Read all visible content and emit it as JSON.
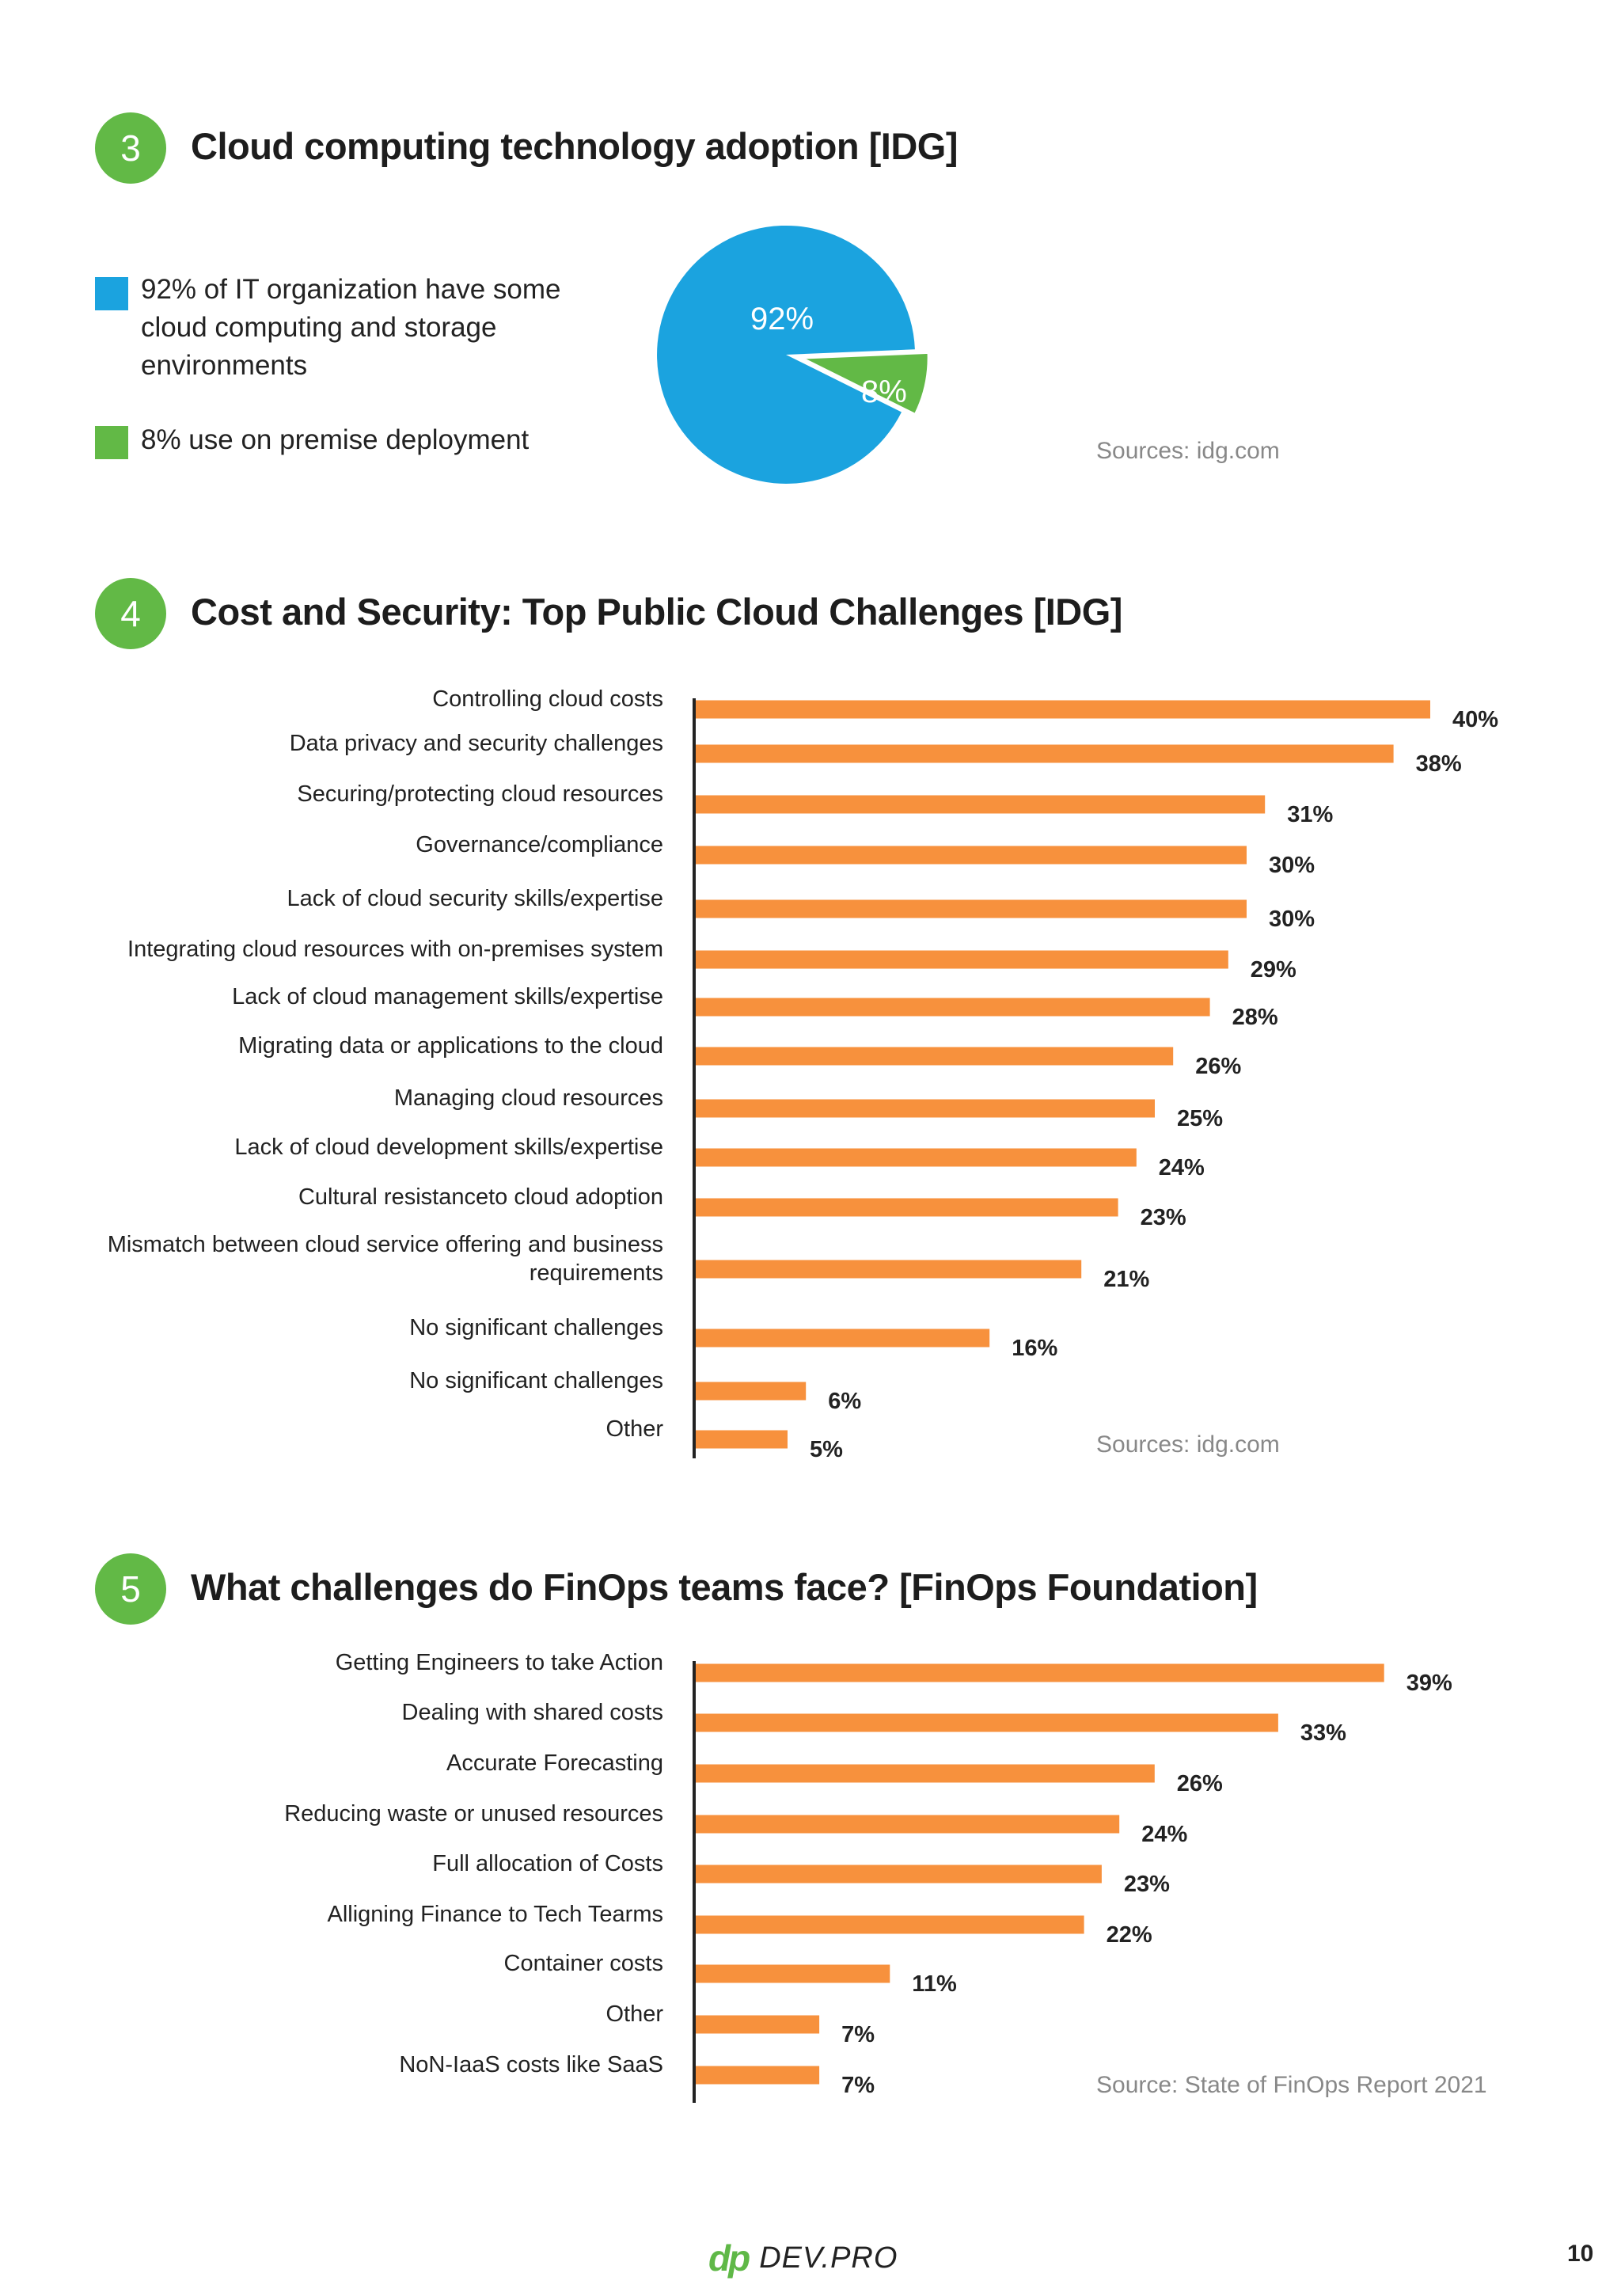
{
  "colors": {
    "green": "#62b946",
    "blue": "#1ba3df",
    "orange": "#f7913d",
    "axis": "#222222"
  },
  "sections": [
    {
      "number": "3",
      "title": "Cloud computing technology adoption [IDG]"
    },
    {
      "number": "4",
      "title": "Cost and Security: Top Public Cloud Challenges [IDG]"
    },
    {
      "number": "5",
      "title": "What challenges do FinOps teams face? [FinOps Foundation]"
    }
  ],
  "legend": [
    {
      "text": "92% of IT organization have some cloud computing and storage environments",
      "color": "#1ba3df"
    },
    {
      "text": "8% use on premise deployment",
      "color": "#62b946"
    }
  ],
  "sources": {
    "s3": "Sources: idg.com",
    "s4": "Sources: idg.com",
    "s5": "Source: State of FinOps Report 2021"
  },
  "chart_data": [
    {
      "type": "pie",
      "title": "Cloud computing technology adoption [IDG]",
      "slices": [
        {
          "label": "92%",
          "value": 92,
          "color": "#1ba3df"
        },
        {
          "label": "8%",
          "value": 8,
          "color": "#62b946"
        }
      ]
    },
    {
      "type": "bar",
      "orientation": "horizontal",
      "title": "Cost and Security: Top Public Cloud Challenges [IDG]",
      "categories": [
        "Controlling cloud  costs",
        "Data privacy and security challenges",
        "Securing/protecting cloud resources",
        "Governance/compliance",
        "Lack of cloud security skills/expertise",
        "Integrating cloud resources with on-premises system",
        "Lack of cloud management skills/expertise",
        "Migrating data or applications to the cloud",
        "Managing cloud resources",
        "Lack of cloud development skills/expertise",
        "Cultural resistanceto cloud adoption",
        "Mismatch between cloud service offering and business requirements",
        "No significant challenges",
        "No significant challenges",
        "Other"
      ],
      "values": [
        40,
        38,
        31,
        30,
        30,
        29,
        28,
        26,
        25,
        24,
        23,
        21,
        16,
        6,
        5
      ],
      "value_labels": [
        "40%",
        "38%",
        "31%",
        "30%",
        "30%",
        "29%",
        "28%",
        "26%",
        "25%",
        "24%",
        "23%",
        "21%",
        "16%",
        "6%",
        "5%"
      ],
      "color": "#f7913d"
    },
    {
      "type": "bar",
      "orientation": "horizontal",
      "title": "What challenges do FinOps teams face? [FinOps Foundation]",
      "categories": [
        "Getting Engineers to take Action",
        "Dealing with shared costs",
        "Accurate Forecasting",
        "Reducing waste or unused resources",
        "Full allocation of Costs",
        "Alligning Finance to Tech Tearms",
        "Container costs",
        "Other",
        "NoN-IaaS costs like SaaS"
      ],
      "values": [
        39,
        33,
        26,
        24,
        23,
        22,
        11,
        7,
        7
      ],
      "value_labels": [
        "39%",
        "33%",
        "26%",
        "24%",
        "23%",
        "22%",
        "11%",
        "7%",
        "7%"
      ],
      "color": "#f7913d"
    }
  ],
  "footer": {
    "logo_mark": "dp",
    "logo_text": "DEV.PRO",
    "page_number": "10"
  }
}
